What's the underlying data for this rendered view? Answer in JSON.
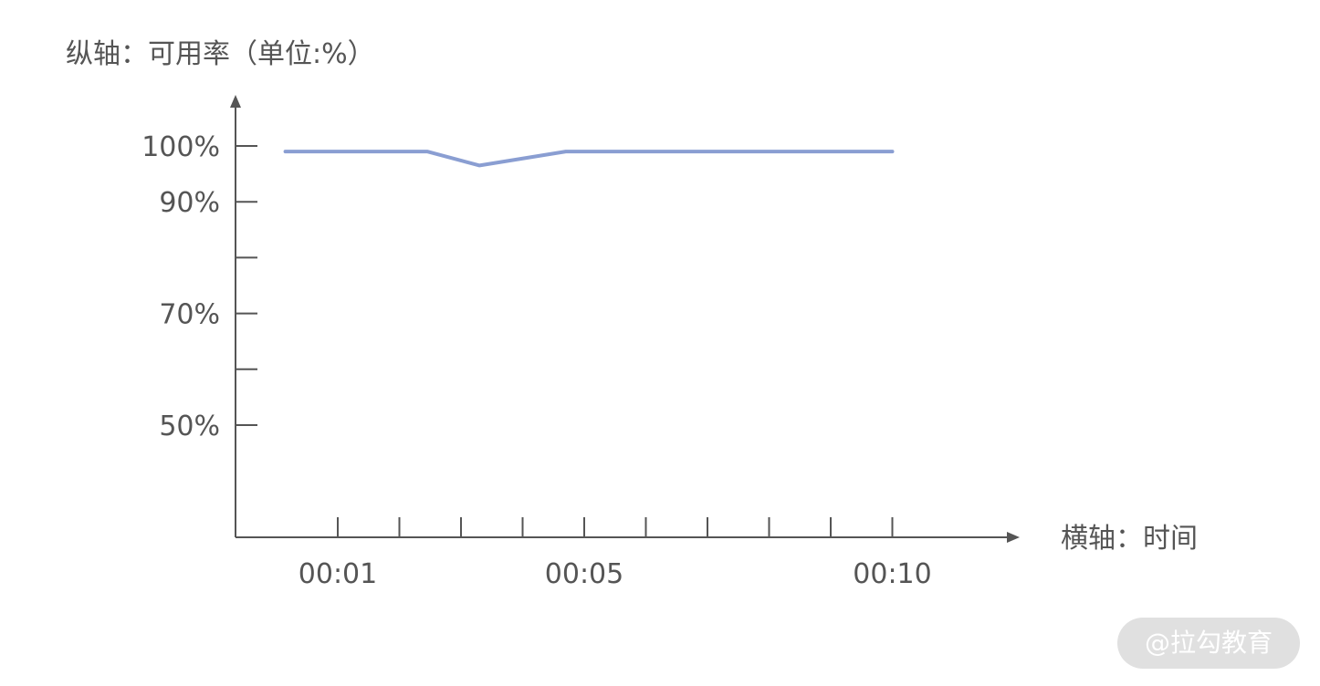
{
  "chart_data": {
    "type": "line",
    "ylabel": "纵轴：可用率（单位:%）",
    "xlabel": "横轴：时间",
    "y_ticks": [
      {
        "value": 100,
        "label": "100%"
      },
      {
        "value": 90,
        "label": "90%"
      },
      {
        "value": 80,
        "label": ""
      },
      {
        "value": 70,
        "label": "70%"
      },
      {
        "value": 60,
        "label": ""
      },
      {
        "value": 50,
        "label": "50%"
      }
    ],
    "ylim": [
      30,
      100
    ],
    "x_ticks": [
      {
        "value": 1,
        "label": "00:01"
      },
      {
        "value": 2,
        "label": ""
      },
      {
        "value": 3,
        "label": ""
      },
      {
        "value": 4,
        "label": ""
      },
      {
        "value": 5,
        "label": "00:05"
      },
      {
        "value": 6,
        "label": ""
      },
      {
        "value": 7,
        "label": ""
      },
      {
        "value": 8,
        "label": ""
      },
      {
        "value": 9,
        "label": ""
      },
      {
        "value": 10,
        "label": "00:10"
      }
    ],
    "series": [
      {
        "color": "#8a9ed2",
        "x": [
          0.15,
          2.45,
          3.3,
          4.7,
          5.5,
          6.5,
          7.5,
          8.5,
          9.5,
          10.0
        ],
        "values": [
          99,
          99,
          96.5,
          99,
          99,
          99,
          99,
          99,
          99,
          99
        ]
      }
    ],
    "grid": false,
    "legend": "none"
  },
  "watermark": {
    "text": "@拉勾教育"
  }
}
